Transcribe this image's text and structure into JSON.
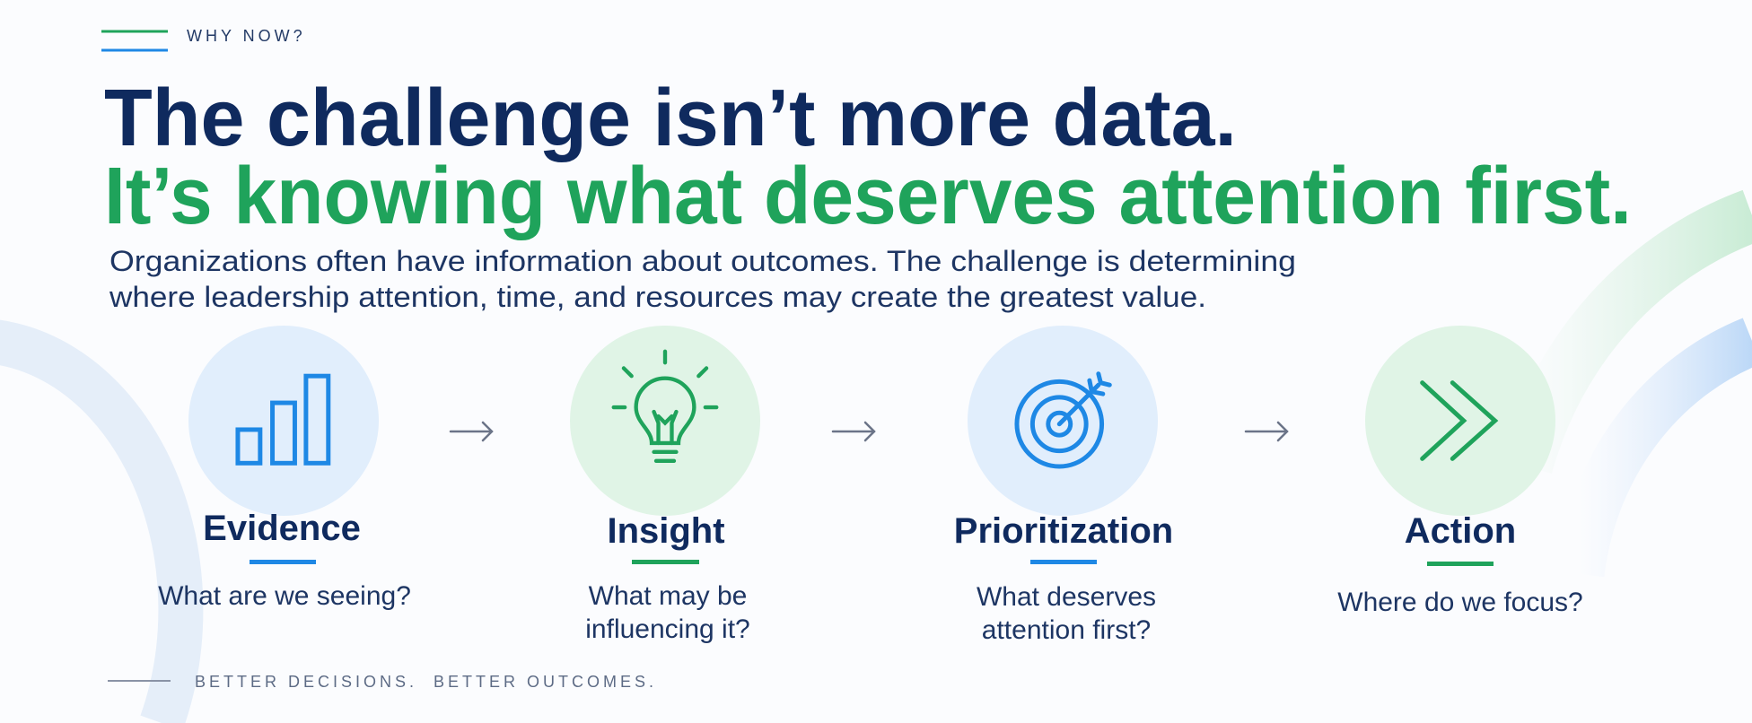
{
  "eyebrow": "WHY NOW?",
  "headline": {
    "line1": "The challenge isn’t more data.",
    "line2": "It’s knowing what deserves attention first."
  },
  "body": {
    "lines": [
      "Organizations often have information about outcomes. The challenge is determining",
      "where leadership attention, time, and resources may create the greatest value."
    ]
  },
  "steps": [
    {
      "title": "Evidence",
      "question": [
        "What are we seeing?"
      ]
    },
    {
      "title": "Insight",
      "question": [
        "What may be",
        "influencing it?"
      ]
    },
    {
      "title": "Prioritization",
      "question": [
        "What deserves",
        "attention first?"
      ]
    },
    {
      "title": "Action",
      "question": [
        "Where do we focus?"
      ]
    }
  ],
  "footer": "BETTER DECISIONS.  BETTER OUTCOMES."
}
